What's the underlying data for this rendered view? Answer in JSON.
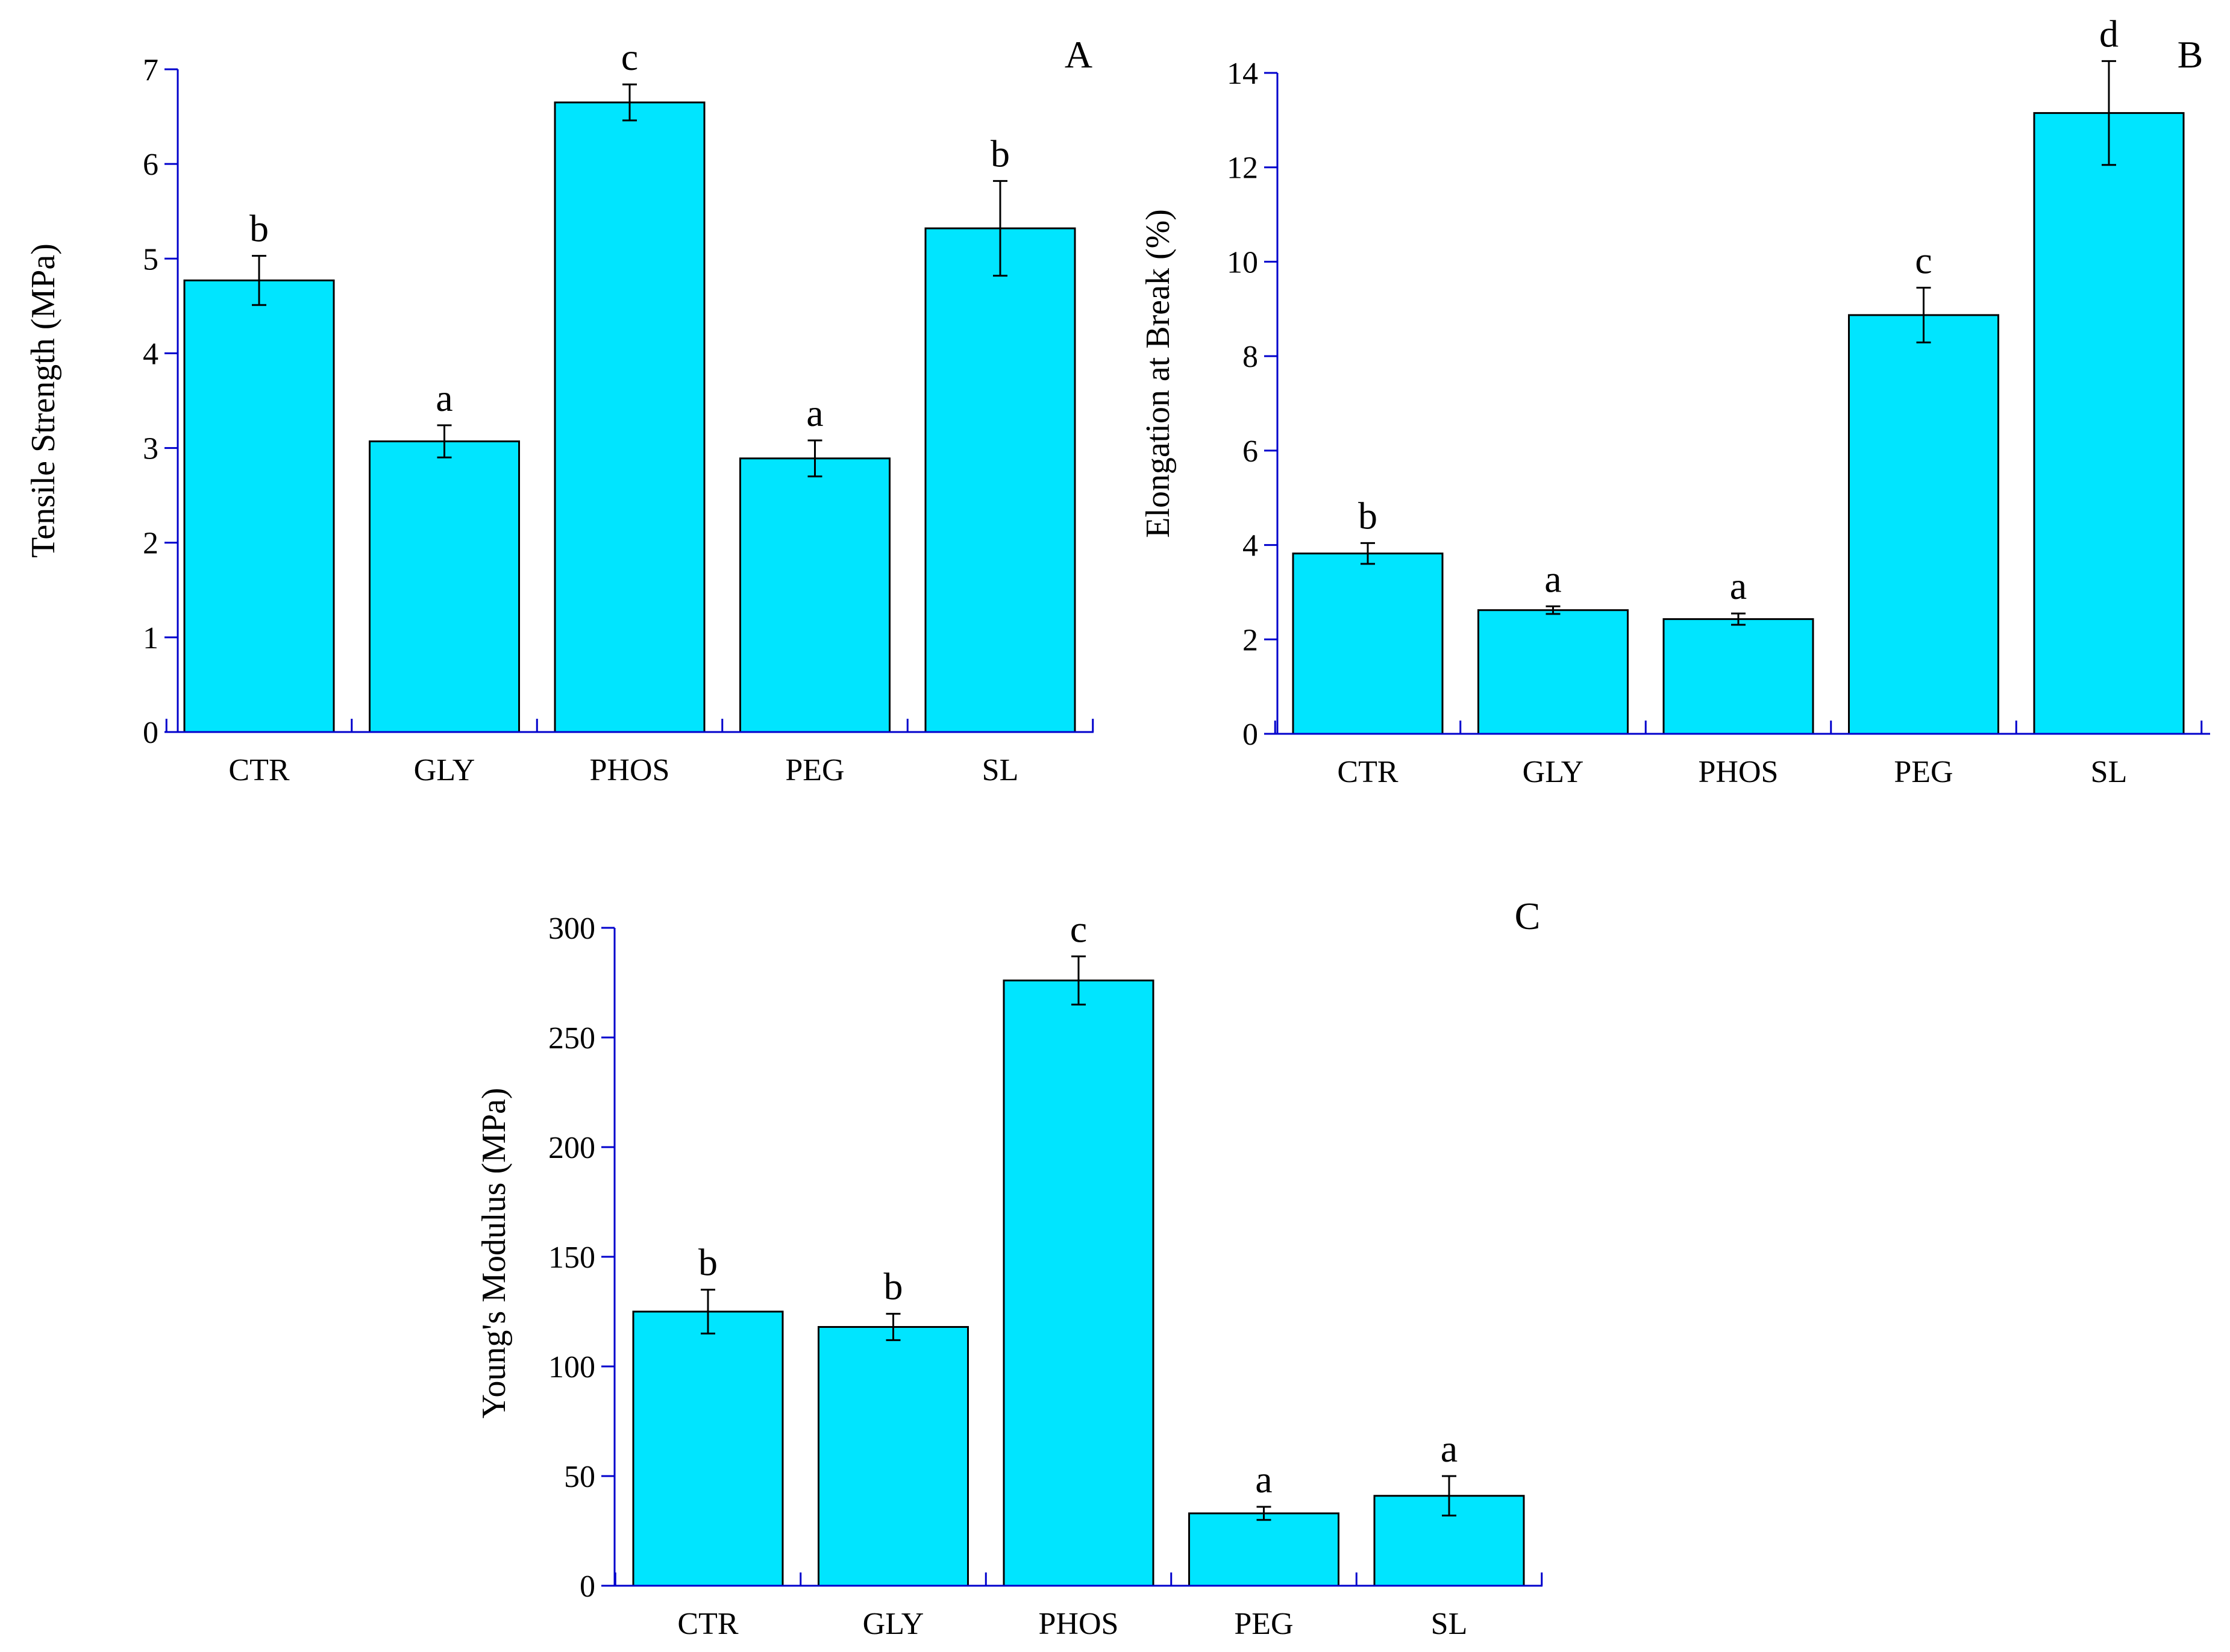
{
  "colors": {
    "bar": "#00E5FF",
    "axis": "#0000CC",
    "outline": "#000000"
  },
  "chart_data": [
    {
      "type": "bar",
      "panel": "A",
      "ylabel": "Tensile Strength (MPa)",
      "ylim": [
        0,
        7
      ],
      "yticks": [
        0,
        1,
        2,
        3,
        4,
        5,
        6,
        7
      ],
      "categories": [
        "CTR",
        "GLY",
        "PHOS",
        "PEG",
        "SL"
      ],
      "values": [
        4.77,
        3.07,
        6.65,
        2.89,
        5.32
      ],
      "errors": [
        0.26,
        0.17,
        0.19,
        0.19,
        0.5
      ],
      "significance": [
        "b",
        "a",
        "c",
        "a",
        "b"
      ]
    },
    {
      "type": "bar",
      "panel": "B",
      "ylabel": "Elongation at Break (%)",
      "ylim": [
        0,
        14
      ],
      "yticks": [
        0,
        2,
        4,
        6,
        8,
        10,
        12,
        14
      ],
      "categories": [
        "CTR",
        "GLY",
        "PHOS",
        "PEG",
        "SL"
      ],
      "values": [
        3.82,
        2.62,
        2.43,
        8.87,
        13.15
      ],
      "errors": [
        0.22,
        0.08,
        0.12,
        0.58,
        1.1
      ],
      "significance": [
        "b",
        "a",
        "a",
        "c",
        "d"
      ]
    },
    {
      "type": "bar",
      "panel": "C",
      "ylabel": "Young's Modulus (MPa)",
      "ylim": [
        0,
        300
      ],
      "yticks": [
        0,
        50,
        100,
        150,
        200,
        250,
        300
      ],
      "categories": [
        "CTR",
        "GLY",
        "PHOS",
        "PEG",
        "SL"
      ],
      "values": [
        125,
        118,
        276,
        33,
        41
      ],
      "errors": [
        10,
        6,
        11,
        3,
        9
      ],
      "significance": [
        "b",
        "b",
        "c",
        "a",
        "a"
      ]
    }
  ]
}
